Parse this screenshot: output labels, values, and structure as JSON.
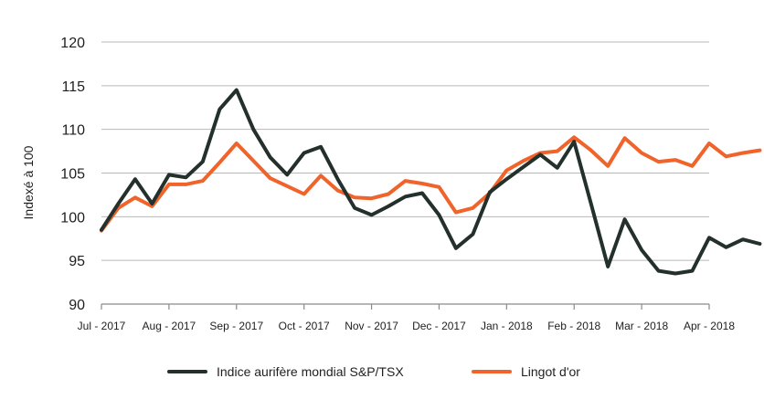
{
  "chart_data": {
    "type": "line",
    "title": "",
    "xlabel": "",
    "ylabel": "Indexé à 100",
    "ylim": [
      90,
      120
    ],
    "yticks": [
      90,
      95,
      100,
      105,
      110,
      115,
      120
    ],
    "grid": true,
    "legend_position": "bottom",
    "x_tick_labels": [
      "Jul - 2017",
      "Aug - 2017",
      "Sep - 2017",
      "Oct - 2017",
      "Nov - 2017",
      "Dec - 2017",
      "Jan - 2018",
      "Feb - 2018",
      "Mar - 2018",
      "Apr - 2018"
    ],
    "points_per_month": 4,
    "series": [
      {
        "name": "Indice aurifère mondial S&P/TSX",
        "color": "#23302b",
        "values": [
          98.5,
          101.5,
          104.3,
          101.5,
          104.8,
          104.5,
          106.3,
          112.3,
          114.5,
          110.0,
          106.8,
          104.8,
          107.3,
          108.0,
          104.3,
          101.0,
          100.2,
          101.2,
          102.3,
          102.7,
          100.2,
          96.4,
          98.0,
          102.8,
          104.3,
          105.7,
          107.1,
          105.6,
          108.6,
          101.5,
          94.3,
          99.7,
          96.2,
          93.8,
          93.5,
          93.8,
          97.6,
          96.5,
          97.4,
          96.9
        ]
      },
      {
        "name": "Lingot d'or",
        "color": "#f0632a",
        "values": [
          98.4,
          101.0,
          102.2,
          101.2,
          103.7,
          103.7,
          104.1,
          106.2,
          108.4,
          106.4,
          104.4,
          103.5,
          102.6,
          104.7,
          103.0,
          102.2,
          102.1,
          102.6,
          104.1,
          103.8,
          103.4,
          100.5,
          101.0,
          102.7,
          105.3,
          106.4,
          107.3,
          107.5,
          109.1,
          107.6,
          105.8,
          109.0,
          107.3,
          106.3,
          106.5,
          105.8,
          108.4,
          106.9,
          107.3,
          107.6
        ]
      }
    ]
  }
}
